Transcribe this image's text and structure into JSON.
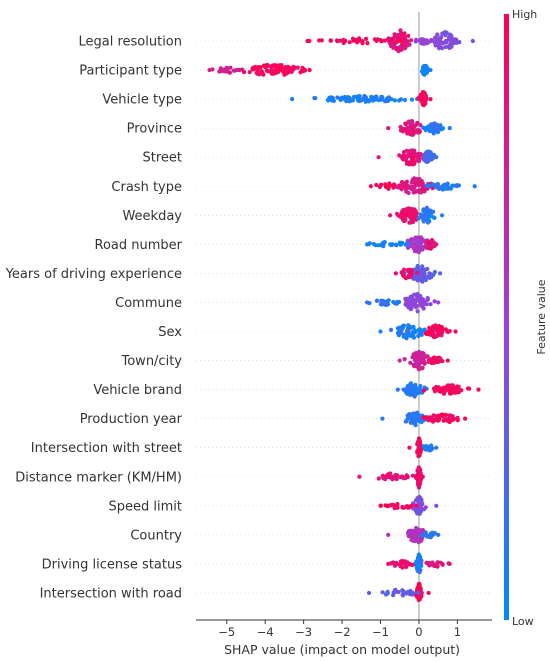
{
  "chart_data": {
    "type": "scatter",
    "subtype": "shap-beeswarm",
    "xlabel": "SHAP value (impact on model output)",
    "xlim": [
      -5.8,
      1.9
    ],
    "xticks": [
      -5,
      -4,
      -3,
      -2,
      -1,
      0,
      1
    ],
    "colorbar": {
      "label": "Feature value",
      "high": "High",
      "low": "Low",
      "high_color": "#ff0051",
      "low_color": "#008bfb"
    },
    "features": [
      {
        "name": "Legal resolution",
        "min": -2.9,
        "max": 1.4,
        "clusters": [
          {
            "c": -0.5,
            "w": 0.28,
            "h": 1.0,
            "n": 70,
            "col": 0.85
          },
          {
            "c": 0.65,
            "w": 0.28,
            "h": 0.9,
            "n": 60,
            "col": 0.4
          },
          {
            "c": -1.6,
            "w": 0.8,
            "h": 0.25,
            "n": 35,
            "col": 0.95
          },
          {
            "c": 0.2,
            "w": 0.25,
            "h": 0.35,
            "n": 20,
            "col": 0.5
          }
        ]
      },
      {
        "name": "Participant type",
        "min": -5.45,
        "max": 0.3,
        "clusters": [
          {
            "c": -3.8,
            "w": 0.7,
            "h": 0.55,
            "n": 90,
            "col": 0.97
          },
          {
            "c": -4.9,
            "w": 0.4,
            "h": 0.25,
            "n": 18,
            "col": 0.8
          },
          {
            "c": 0.15,
            "w": 0.06,
            "h": 0.55,
            "n": 40,
            "col": 0.05
          }
        ]
      },
      {
        "name": "Vehicle type",
        "min": -3.3,
        "max": 0.3,
        "clusters": [
          {
            "c": -1.5,
            "w": 1.1,
            "h": 0.3,
            "n": 80,
            "col": 0.08
          },
          {
            "c": 0.12,
            "w": 0.08,
            "h": 0.7,
            "n": 55,
            "col": 0.95
          }
        ]
      },
      {
        "name": "Province",
        "min": -0.8,
        "max": 0.8,
        "clusters": [
          {
            "c": -0.2,
            "w": 0.25,
            "h": 0.75,
            "n": 60,
            "col": 0.85
          },
          {
            "c": 0.4,
            "w": 0.2,
            "h": 0.5,
            "n": 45,
            "col": 0.12
          }
        ]
      },
      {
        "name": "Street",
        "min": -1.05,
        "max": 0.45,
        "clusters": [
          {
            "c": -0.2,
            "w": 0.25,
            "h": 0.8,
            "n": 60,
            "col": 0.85
          },
          {
            "c": 0.25,
            "w": 0.12,
            "h": 0.6,
            "n": 40,
            "col": 0.2
          }
        ]
      },
      {
        "name": "Crash type",
        "min": -1.25,
        "max": 1.45,
        "clusters": [
          {
            "c": -0.1,
            "w": 0.35,
            "h": 0.85,
            "n": 75,
            "col": 0.8
          },
          {
            "c": 0.6,
            "w": 0.4,
            "h": 0.35,
            "n": 35,
            "col": 0.1
          },
          {
            "c": -0.8,
            "w": 0.3,
            "h": 0.3,
            "n": 15,
            "col": 0.95
          }
        ]
      },
      {
        "name": "Weekday",
        "min": -0.75,
        "max": 0.6,
        "clusters": [
          {
            "c": -0.25,
            "w": 0.22,
            "h": 0.8,
            "n": 55,
            "col": 0.88
          },
          {
            "c": 0.2,
            "w": 0.18,
            "h": 0.75,
            "n": 45,
            "col": 0.1
          }
        ]
      },
      {
        "name": "Road number",
        "min": -1.35,
        "max": 0.45,
        "clusters": [
          {
            "c": 0.0,
            "w": 0.28,
            "h": 0.8,
            "n": 60,
            "col": 0.55
          },
          {
            "c": -0.8,
            "w": 0.4,
            "h": 0.3,
            "n": 25,
            "col": 0.08
          },
          {
            "c": 0.3,
            "w": 0.12,
            "h": 0.5,
            "n": 20,
            "col": 0.85
          }
        ]
      },
      {
        "name": "Years of driving experience",
        "min": -0.6,
        "max": 0.55,
        "clusters": [
          {
            "c": 0.05,
            "w": 0.25,
            "h": 0.85,
            "n": 65,
            "col": 0.3
          },
          {
            "c": -0.3,
            "w": 0.15,
            "h": 0.5,
            "n": 25,
            "col": 0.9
          }
        ]
      },
      {
        "name": "Commune",
        "min": -1.35,
        "max": 0.5,
        "clusters": [
          {
            "c": -0.05,
            "w": 0.3,
            "h": 0.85,
            "n": 65,
            "col": 0.45
          },
          {
            "c": -0.8,
            "w": 0.35,
            "h": 0.3,
            "n": 20,
            "col": 0.15
          }
        ]
      },
      {
        "name": "Sex",
        "min": -1.0,
        "max": 0.95,
        "clusters": [
          {
            "c": -0.25,
            "w": 0.35,
            "h": 0.7,
            "n": 55,
            "col": 0.08
          },
          {
            "c": 0.45,
            "w": 0.25,
            "h": 0.6,
            "n": 45,
            "col": 0.95
          }
        ]
      },
      {
        "name": "Town/city",
        "min": -0.5,
        "max": 0.75,
        "clusters": [
          {
            "c": 0.0,
            "w": 0.22,
            "h": 0.9,
            "n": 60,
            "col": 0.75
          },
          {
            "c": 0.45,
            "w": 0.18,
            "h": 0.35,
            "n": 20,
            "col": 0.95
          }
        ]
      },
      {
        "name": "Vehicle brand",
        "min": -0.55,
        "max": 1.55,
        "clusters": [
          {
            "c": -0.15,
            "w": 0.22,
            "h": 0.7,
            "n": 45,
            "col": 0.1
          },
          {
            "c": 0.8,
            "w": 0.45,
            "h": 0.45,
            "n": 60,
            "col": 0.95
          }
        ]
      },
      {
        "name": "Production year",
        "min": -0.95,
        "max": 1.2,
        "clusters": [
          {
            "c": -0.1,
            "w": 0.25,
            "h": 0.65,
            "n": 50,
            "col": 0.12
          },
          {
            "c": 0.6,
            "w": 0.35,
            "h": 0.45,
            "n": 50,
            "col": 0.95
          }
        ]
      },
      {
        "name": "Intersection with street",
        "min": -0.25,
        "max": 0.45,
        "clusters": [
          {
            "c": 0.0,
            "w": 0.05,
            "h": 0.9,
            "n": 50,
            "col": 0.95
          },
          {
            "c": 0.25,
            "w": 0.12,
            "h": 0.3,
            "n": 20,
            "col": 0.1
          }
        ]
      },
      {
        "name": "Distance marker (KM/HM)",
        "min": -1.55,
        "max": 0.1,
        "clusters": [
          {
            "c": 0.0,
            "w": 0.05,
            "h": 1.0,
            "n": 55,
            "col": 0.9
          },
          {
            "c": -0.75,
            "w": 0.5,
            "h": 0.3,
            "n": 30,
            "col": 0.85
          }
        ]
      },
      {
        "name": "Speed limit",
        "min": -1.0,
        "max": 0.45,
        "clusters": [
          {
            "c": 0.0,
            "w": 0.12,
            "h": 0.9,
            "n": 50,
            "col": 0.4
          },
          {
            "c": -0.5,
            "w": 0.3,
            "h": 0.3,
            "n": 25,
            "col": 0.95
          }
        ]
      },
      {
        "name": "Country",
        "min": -0.8,
        "max": 0.5,
        "clusters": [
          {
            "c": -0.05,
            "w": 0.22,
            "h": 0.8,
            "n": 55,
            "col": 0.6
          },
          {
            "c": 0.25,
            "w": 0.15,
            "h": 0.4,
            "n": 20,
            "col": 0.12
          }
        ]
      },
      {
        "name": "Driving license status",
        "min": -0.8,
        "max": 0.8,
        "clusters": [
          {
            "c": 0.0,
            "w": 0.06,
            "h": 0.9,
            "n": 45,
            "col": 0.1
          },
          {
            "c": -0.4,
            "w": 0.25,
            "h": 0.35,
            "n": 25,
            "col": 0.9
          },
          {
            "c": 0.45,
            "w": 0.2,
            "h": 0.35,
            "n": 20,
            "col": 0.85
          }
        ]
      },
      {
        "name": "Intersection with road",
        "min": -1.3,
        "max": 0.25,
        "clusters": [
          {
            "c": 0.0,
            "w": 0.06,
            "h": 0.9,
            "n": 45,
            "col": 0.95
          },
          {
            "c": -0.5,
            "w": 0.35,
            "h": 0.35,
            "n": 30,
            "col": 0.3
          }
        ]
      }
    ]
  }
}
